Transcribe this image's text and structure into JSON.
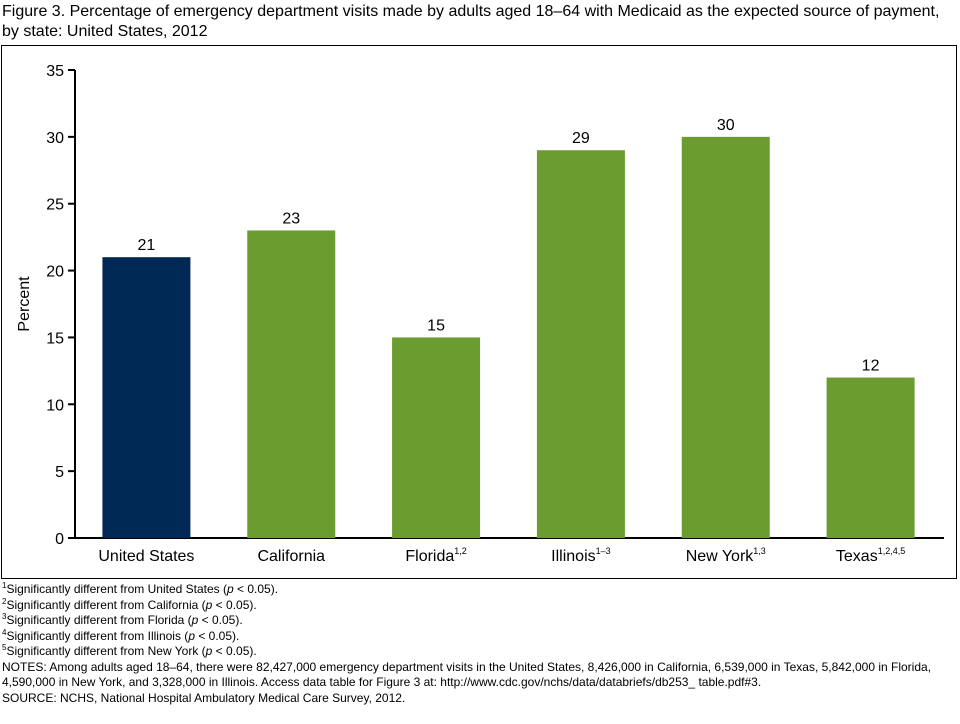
{
  "title": "Figure 3. Percentage of emergency department visits made by adults aged 18–64 with Medicaid as the expected source of payment, by state: United States, 2012",
  "chart_data": {
    "type": "bar",
    "categories": [
      "United States",
      "California",
      "Florida",
      "Illinois",
      "New York",
      "Texas"
    ],
    "category_superscripts": [
      "",
      "",
      "1,2",
      "1–3",
      "1,3",
      "1,2,4,5"
    ],
    "values": [
      21,
      23,
      15,
      29,
      30,
      12
    ],
    "bar_colors": [
      "#002855",
      "#6a9c2f",
      "#6a9c2f",
      "#6a9c2f",
      "#6a9c2f",
      "#6a9c2f"
    ],
    "ylabel": "Percent",
    "ylim": [
      0,
      35
    ],
    "yticks": [
      0,
      5,
      10,
      15,
      20,
      25,
      30,
      35
    ],
    "grid": false,
    "legend": "none"
  },
  "footnotes": [
    {
      "sup": "1",
      "before": "Significantly different from United States (",
      "p": "p",
      "after": " < 0.05)."
    },
    {
      "sup": "2",
      "before": "Significantly different from California (",
      "p": "p",
      "after": " < 0.05)."
    },
    {
      "sup": "3",
      "before": "Significantly different from Florida (",
      "p": "p",
      "after": " < 0.05)."
    },
    {
      "sup": "4",
      "before": "Significantly different from Illinois (",
      "p": "p",
      "after": " < 0.05)."
    },
    {
      "sup": "5",
      "before": "Significantly different from New York (",
      "p": "p",
      "after": " < 0.05)."
    }
  ],
  "notes": "NOTES: Among adults aged 18–64, there were 82,427,000 emergency department visits in the United States, 8,426,000 in California, 6,539,000 in Texas, 5,842,000 in Florida, 4,590,000 in New York, and 3,328,000 in Illinois. Access data table for Figure 3 at: http://www.cdc.gov/nchs/data/databriefs/db253_ table.pdf#3.",
  "source": "SOURCE: NCHS, National Hospital Ambulatory Medical Care Survey, 2012."
}
